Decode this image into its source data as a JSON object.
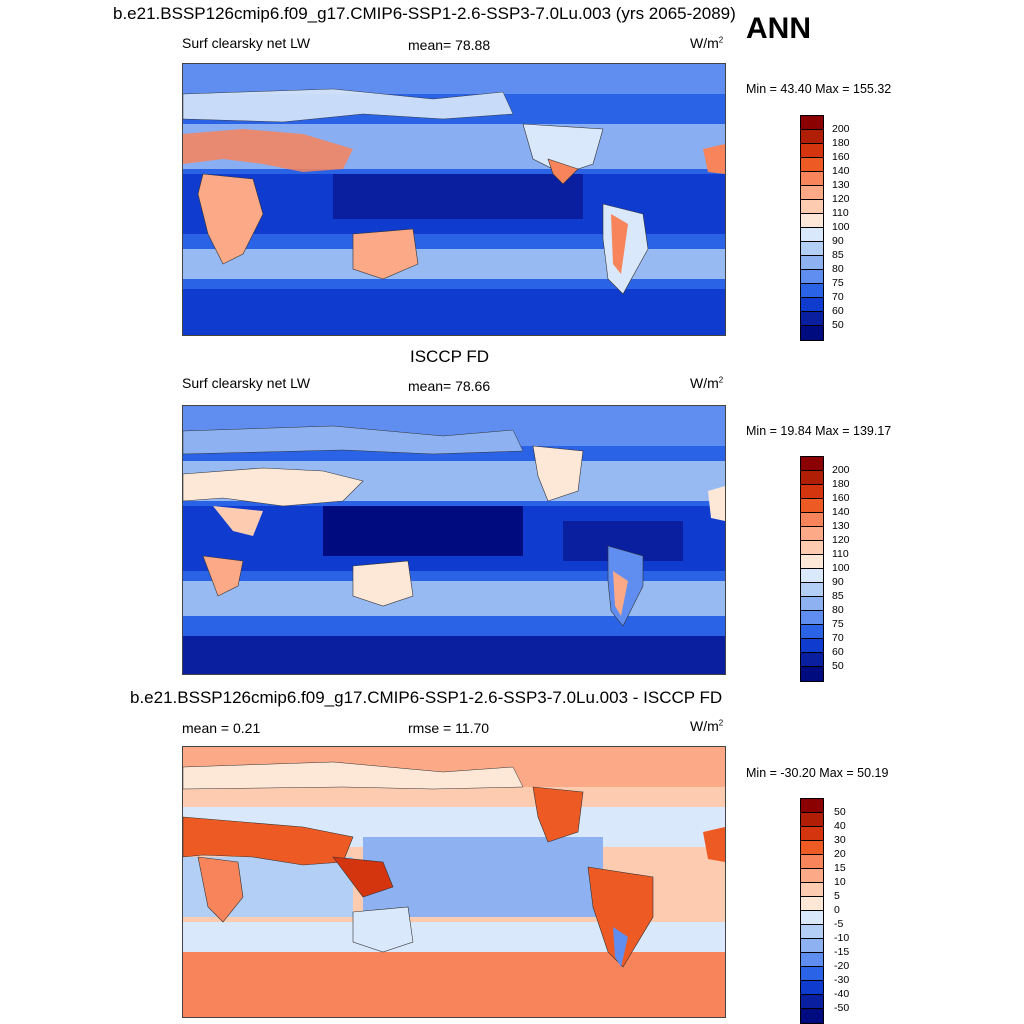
{
  "season": "ANN",
  "panel1": {
    "title": "b.e21.BSSP126cmip6.f09_g17.CMIP6-SSP1-2.6-SSP3-7.0Lu.003 (yrs 2065-2089)",
    "variable": "Surf clearsky net LW",
    "mean_label": "mean=  78.88",
    "units": "W/m",
    "units_sup": "2",
    "minmax": "Min =  43.40 Max = 155.32",
    "ticks": [
      "200",
      "180",
      "160",
      "140",
      "130",
      "120",
      "110",
      "100",
      "90",
      "85",
      "80",
      "75",
      "70",
      "60",
      "50"
    ]
  },
  "panel2": {
    "title": "ISCCP FD",
    "variable": "Surf clearsky net LW",
    "mean_label": "mean=  78.66",
    "units": "W/m",
    "units_sup": "2",
    "minmax": "Min =  19.84 Max = 139.17",
    "ticks": [
      "200",
      "180",
      "160",
      "140",
      "130",
      "120",
      "110",
      "100",
      "90",
      "85",
      "80",
      "75",
      "70",
      "60",
      "50"
    ]
  },
  "panel3": {
    "title": "b.e21.BSSP126cmip6.f09_g17.CMIP6-SSP1-2.6-SSP3-7.0Lu.003 - ISCCP FD",
    "mean_label": "mean =   0.21",
    "rmse_label": "rmse =  11.70",
    "units": "W/m",
    "units_sup": "2",
    "minmax": "Min = -30.20 Max =  50.19",
    "ticks": [
      "50",
      "40",
      "30",
      "20",
      "15",
      "10",
      "5",
      "0",
      "-5",
      "-10",
      "-15",
      "-20",
      "-30",
      "-40",
      "-50"
    ]
  },
  "colors": {
    "abs_scale": [
      "#8b0000",
      "#b01e06",
      "#d4350e",
      "#ee5a24",
      "#f7845a",
      "#fba987",
      "#fdcbb0",
      "#fde8d8",
      "#d9e8fa",
      "#b4cff6",
      "#8eb2f1",
      "#5f8ef0",
      "#2b63e6",
      "#0f3ccf",
      "#0a1fa0",
      "#000b80"
    ],
    "diff_scale": [
      "#8b0000",
      "#b01e06",
      "#d4350e",
      "#ee5a24",
      "#f7845a",
      "#fba987",
      "#fdcbb0",
      "#fde8d8",
      "#d9e8fa",
      "#b4cff6",
      "#8eb2f1",
      "#5f8ef0",
      "#2b63e6",
      "#0f3ccf",
      "#0a1fa0",
      "#000b80"
    ]
  }
}
